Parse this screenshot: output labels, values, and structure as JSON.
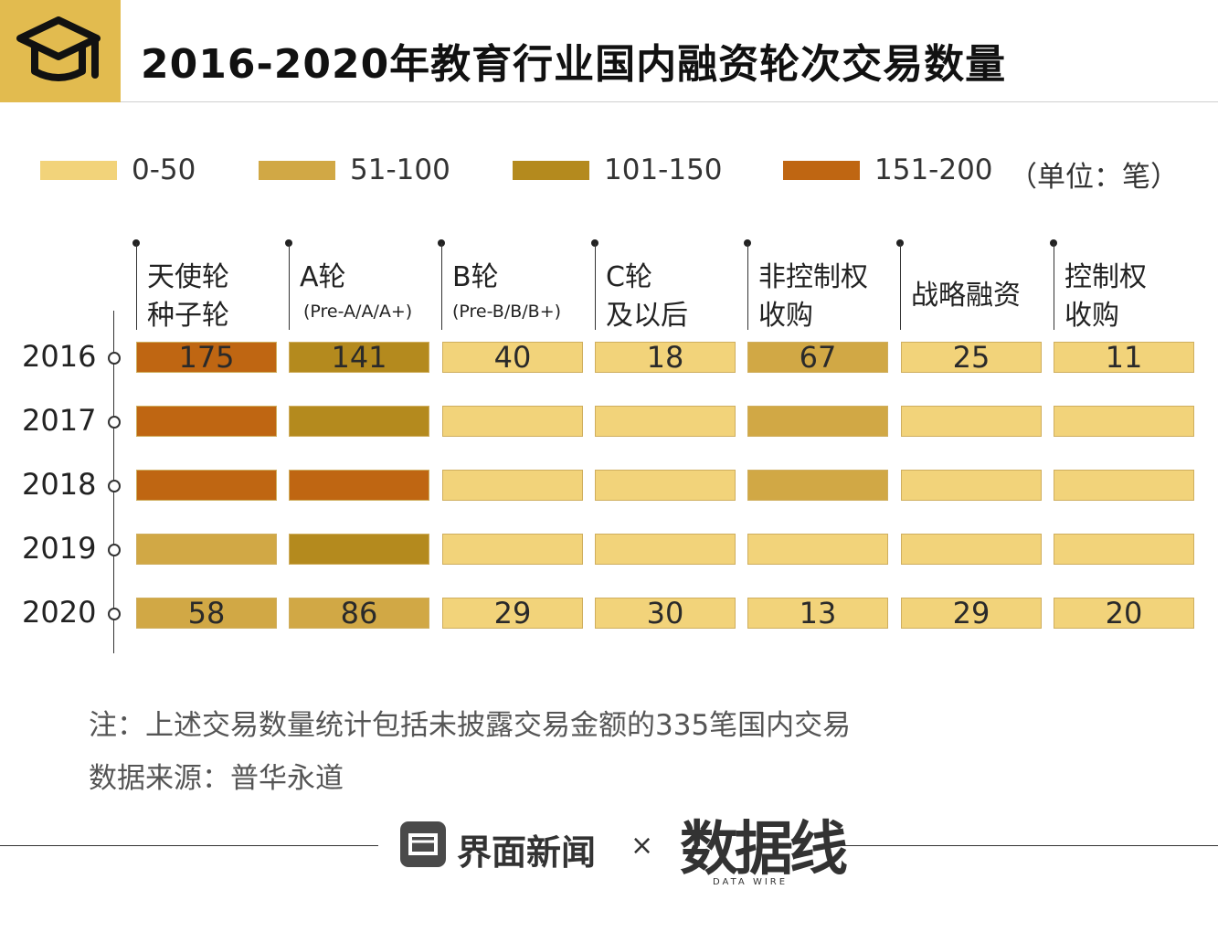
{
  "header": {
    "title": "2016-2020年教育行业国内融资轮次交易数量",
    "icon": "graduation-cap-icon",
    "accent": "#e2bb4f"
  },
  "legend": {
    "items": [
      {
        "label": "0-50",
        "color": "#f2d37a"
      },
      {
        "label": "51-100",
        "color": "#d1a845"
      },
      {
        "label": "101-150",
        "color": "#b48a1e"
      },
      {
        "label": "151-200",
        "color": "#bf6612"
      }
    ],
    "unit": "（单位：笔）"
  },
  "chart_data": {
    "type": "heatmap",
    "title": "2016-2020年教育行业国内融资轮次交易数量",
    "unit": "笔",
    "columns": [
      {
        "line1": "天使轮",
        "line2": "种子轮",
        "sub": ""
      },
      {
        "line1": "A轮",
        "line2": "",
        "sub": "(Pre-A/A/A+)"
      },
      {
        "line1": "B轮",
        "line2": "",
        "sub": "(Pre-B/B/B+)"
      },
      {
        "line1": "C轮",
        "line2": "及以后",
        "sub": ""
      },
      {
        "line1": "非控制权",
        "line2": "收购",
        "sub": ""
      },
      {
        "line1": "战略融资",
        "line2": "",
        "sub": ""
      },
      {
        "line1": "控制权",
        "line2": "收购",
        "sub": ""
      }
    ],
    "rows": [
      "2016",
      "2017",
      "2018",
      "2019",
      "2020"
    ],
    "ranges": [
      [
        3,
        2,
        0,
        0,
        1,
        0,
        0
      ],
      [
        3,
        2,
        0,
        0,
        1,
        0,
        0
      ],
      [
        3,
        3,
        0,
        0,
        1,
        0,
        0
      ],
      [
        1,
        2,
        0,
        0,
        0,
        0,
        0
      ],
      [
        1,
        1,
        0,
        0,
        0,
        0,
        0
      ]
    ],
    "labels": [
      [
        "175",
        "141",
        "40",
        "18",
        "67",
        "25",
        "11"
      ],
      [
        "",
        "",
        "",
        "",
        "",
        "",
        ""
      ],
      [
        "",
        "",
        "",
        "",
        "",
        "",
        ""
      ],
      [
        "",
        "",
        "",
        "",
        "",
        "",
        ""
      ],
      [
        "58",
        "86",
        "29",
        "30",
        "13",
        "29",
        "20"
      ]
    ]
  },
  "notes": {
    "note": "注：上述交易数量统计包括未披露交易金额的335笔国内交易",
    "source": "数据来源：普华永道"
  },
  "footer": {
    "brand": "界面新闻",
    "times": "×",
    "partner": "数据线",
    "partner_sub": "DATA WIRE"
  }
}
